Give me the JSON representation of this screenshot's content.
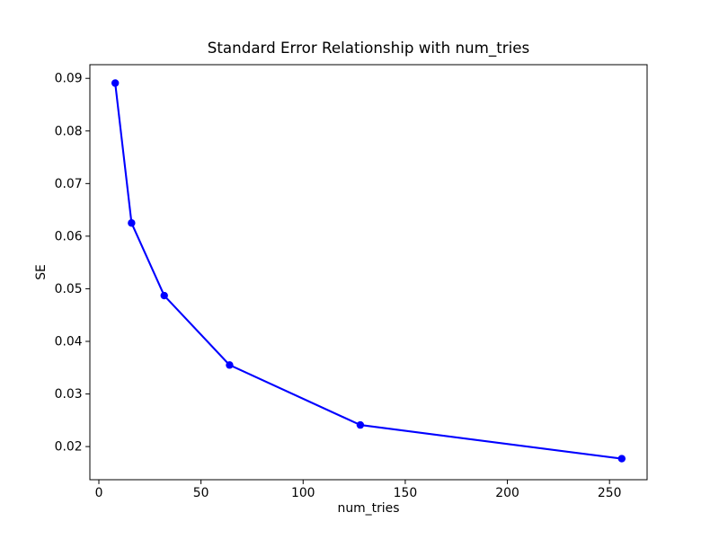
{
  "figure": {
    "background": "#ffffff",
    "frame_color": "#000000"
  },
  "chart_data": {
    "type": "line",
    "title": "Standard Error Relationship with num_tries",
    "xlabel": "num_tries",
    "ylabel": "SE",
    "x": [
      8,
      16,
      32,
      64,
      128,
      256
    ],
    "series": [
      {
        "name": "SE",
        "color": "#0000ff",
        "marker": "circle",
        "values": [
          0.0891,
          0.0625,
          0.0487,
          0.0355,
          0.0241,
          0.0177
        ]
      }
    ],
    "xlim": [
      -4.4,
      268.4
    ],
    "ylim": [
      0.0137,
      0.0926
    ],
    "xticks": [
      0,
      50,
      100,
      150,
      200,
      250
    ],
    "yticks": [
      0.02,
      0.03,
      0.04,
      0.05,
      0.06,
      0.07,
      0.08,
      0.09
    ],
    "grid": false,
    "legend": "none"
  }
}
